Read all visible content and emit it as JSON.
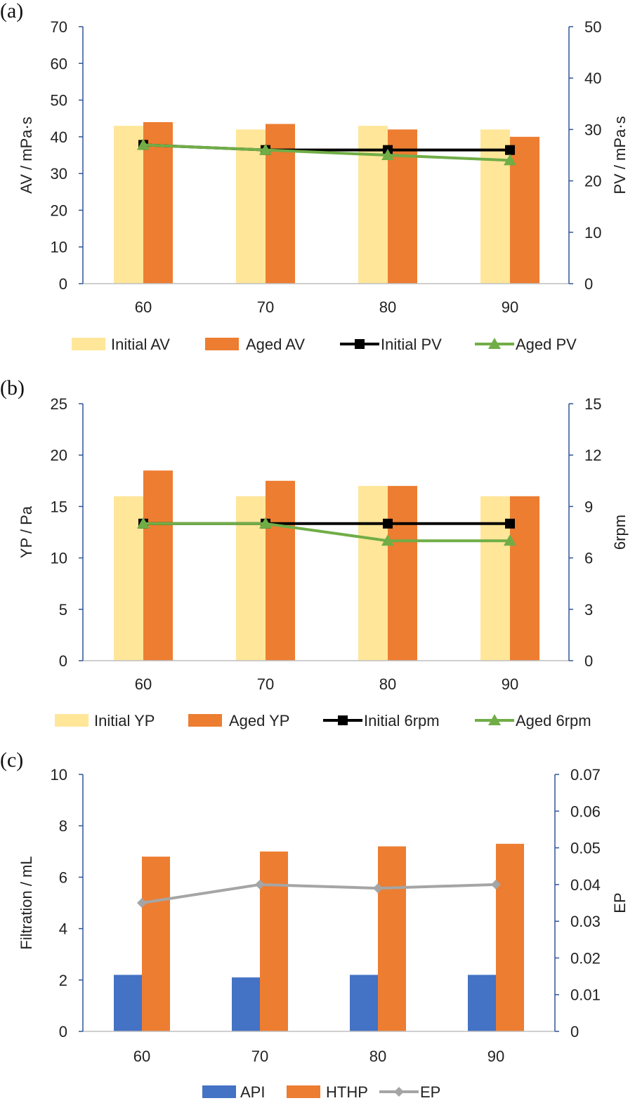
{
  "chart_data": [
    {
      "type": "bar",
      "panel_label": "(a)",
      "categories": [
        "60",
        "70",
        "80",
        "90"
      ],
      "ylabel": "AV / mPa·s",
      "ylim": [
        0,
        70
      ],
      "yticks": [
        "0",
        "10",
        "20",
        "30",
        "40",
        "50",
        "60",
        "70"
      ],
      "y2label": "PV / mPa·s",
      "y2lim": [
        0,
        50
      ],
      "y2ticks": [
        "0",
        "10",
        "20",
        "30",
        "40",
        "50"
      ],
      "series": [
        {
          "name": "Initial AV",
          "kind": "bar",
          "axis": "left",
          "color": "#FFE699",
          "values": [
            43,
            42,
            43,
            42
          ]
        },
        {
          "name": "Aged AV",
          "kind": "bar",
          "axis": "left",
          "color": "#ED7D31",
          "values": [
            44,
            43.5,
            42,
            40
          ]
        },
        {
          "name": "Initial PV",
          "kind": "line",
          "axis": "right",
          "marker": "square",
          "color": "#000000",
          "values": [
            27,
            26,
            26,
            26
          ]
        },
        {
          "name": "Aged PV",
          "kind": "line",
          "axis": "right",
          "marker": "triangle",
          "color": "#70AD47",
          "values": [
            27,
            26,
            25,
            24
          ]
        }
      ],
      "legend": "bottom"
    },
    {
      "type": "bar",
      "panel_label": "(b)",
      "categories": [
        "60",
        "70",
        "80",
        "90"
      ],
      "ylabel": "YP / Pa",
      "ylim": [
        0,
        25
      ],
      "yticks": [
        "0",
        "5",
        "10",
        "15",
        "20",
        "25"
      ],
      "y2label": "6rpm",
      "y2lim": [
        0,
        15
      ],
      "y2ticks": [
        "0",
        "3",
        "6",
        "9",
        "12",
        "15"
      ],
      "series": [
        {
          "name": "Initial YP",
          "kind": "bar",
          "axis": "left",
          "color": "#FFE699",
          "values": [
            16,
            16,
            17,
            16
          ]
        },
        {
          "name": "Aged YP",
          "kind": "bar",
          "axis": "left",
          "color": "#ED7D31",
          "values": [
            18.5,
            17.5,
            17,
            16
          ]
        },
        {
          "name": "Initial 6rpm",
          "kind": "line",
          "axis": "right",
          "marker": "square",
          "color": "#000000",
          "values": [
            8,
            8,
            8,
            8
          ]
        },
        {
          "name": "Aged 6rpm",
          "kind": "line",
          "axis": "right",
          "marker": "triangle",
          "color": "#70AD47",
          "values": [
            8,
            8,
            7,
            7
          ]
        }
      ],
      "legend": "bottom"
    },
    {
      "type": "bar",
      "panel_label": "(c)",
      "categories": [
        "60",
        "70",
        "80",
        "90"
      ],
      "ylabel": "Filtration / mL",
      "ylim": [
        0,
        10
      ],
      "yticks": [
        "0",
        "2",
        "4",
        "6",
        "8",
        "10"
      ],
      "y2label": "EP",
      "y2lim": [
        0,
        0.07
      ],
      "y2ticks": [
        "0",
        "0.01",
        "0.02",
        "0.03",
        "0.04",
        "0.05",
        "0.06",
        "0.07"
      ],
      "series": [
        {
          "name": "API",
          "kind": "bar",
          "axis": "left",
          "color": "#4472C4",
          "values": [
            2.2,
            2.1,
            2.2,
            2.2
          ]
        },
        {
          "name": "HTHP",
          "kind": "bar",
          "axis": "left",
          "color": "#ED7D31",
          "values": [
            6.8,
            7.0,
            7.2,
            7.3
          ]
        },
        {
          "name": "EP",
          "kind": "line",
          "axis": "right",
          "marker": "diamond",
          "color": "#A5A5A5",
          "values": [
            0.035,
            0.04,
            0.039,
            0.04
          ]
        }
      ],
      "legend": "bottom"
    }
  ]
}
